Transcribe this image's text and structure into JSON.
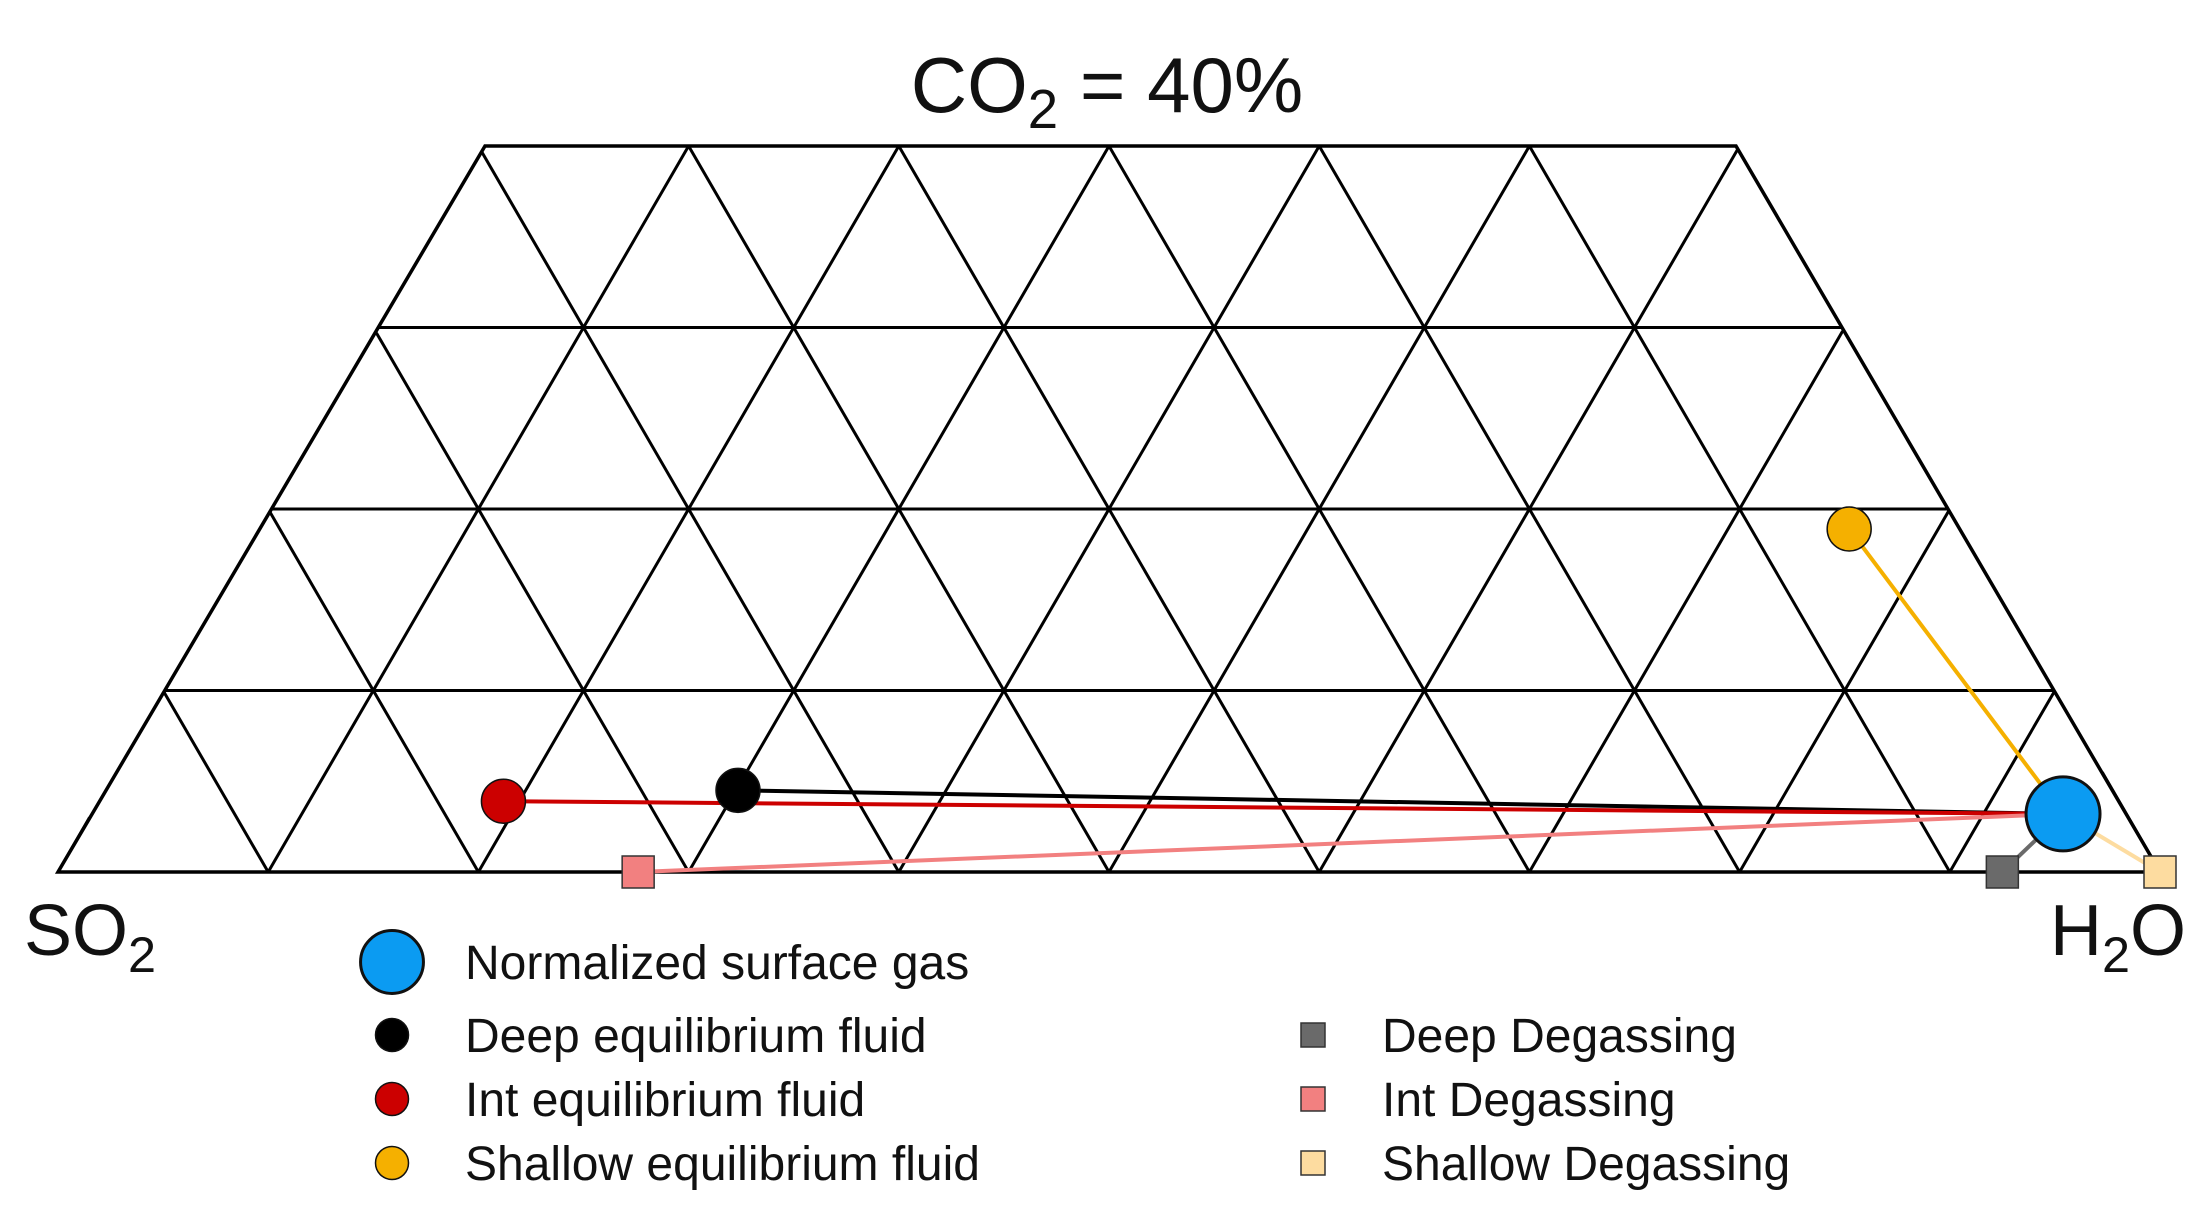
{
  "chart_data": {
    "type": "scatter",
    "subtype": "ternary-trapezoid-section",
    "title": {
      "main": "CO",
      "sub": "2",
      "suffix": " = 40%"
    },
    "corners": {
      "left": {
        "main": "SO",
        "sub": "2"
      },
      "right": {
        "main": "H",
        "sub": "2",
        "suffix": "O"
      }
    },
    "axis_ranges": {
      "co2": [
        0,
        40
      ],
      "h2o_fraction_of_remainder": [
        0,
        100
      ]
    },
    "grid": true,
    "grid_rows": 4,
    "grid_columns": 10,
    "colors": {
      "normalized": "#0b9bf2",
      "deep": "#000000",
      "int": "#cc0000",
      "shallow": "#f5b000",
      "deep_degassing": "#6a6a6a",
      "int_degassing": "#f28080",
      "shallow_degassing": "#fddca0"
    },
    "points": [
      {
        "key": "normalized",
        "label": "Normalized surface gas",
        "marker": "circle-large",
        "co2": 3.2,
        "h2o_frac": 96.9
      },
      {
        "key": "deep",
        "label": "Deep equilibrium fluid",
        "marker": "circle",
        "co2": 4.5,
        "h2o_frac": 31.5
      },
      {
        "key": "int",
        "label": "Int equilibrium fluid",
        "marker": "circle",
        "co2": 3.9,
        "h2o_frac": 20.0
      },
      {
        "key": "shallow",
        "label": "Shallow equilibrium fluid",
        "marker": "circle",
        "co2": 18.9,
        "h2o_frac": 93.5
      },
      {
        "key": "deep_degassing",
        "label": "Deep Degassing",
        "marker": "square",
        "co2": 0.0,
        "h2o_frac": 92.5
      },
      {
        "key": "int_degassing",
        "label": "Int Degassing",
        "marker": "square",
        "co2": 0.0,
        "h2o_frac": 27.6
      },
      {
        "key": "shallow_degassing",
        "label": "Shallow Degassing",
        "marker": "square",
        "co2": 0.0,
        "h2o_frac": 100.0
      }
    ],
    "paths": [
      {
        "from": "deep",
        "to": "normalized",
        "color_key": "deep"
      },
      {
        "from": "int",
        "to": "normalized",
        "color_key": "int"
      },
      {
        "from": "shallow",
        "to": "normalized",
        "color_key": "shallow"
      },
      {
        "from": "int_degassing",
        "to": "normalized",
        "color_key": "int_degassing"
      },
      {
        "from": "deep_degassing",
        "to": "normalized",
        "color_key": "deep_degassing"
      },
      {
        "from": "shallow_degassing",
        "to": "normalized",
        "color_key": "shallow_degassing"
      }
    ],
    "legend": {
      "placement": "bottom",
      "columns": [
        [
          "normalized",
          "deep",
          "int",
          "shallow"
        ],
        [
          "deep_degassing",
          "int_degassing",
          "shallow_degassing"
        ]
      ]
    }
  }
}
